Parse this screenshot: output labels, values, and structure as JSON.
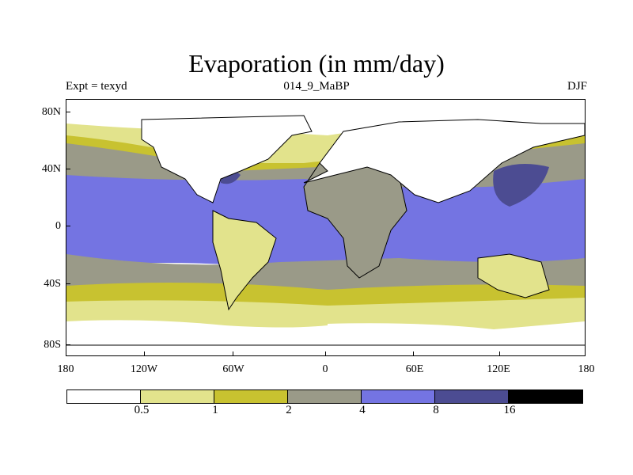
{
  "title": "Evaporation (in mm/day)",
  "subtitle_left": "Expt = texyd",
  "subtitle_center": "014_9_MaBP",
  "subtitle_right": "DJF",
  "yticks": [
    "80N",
    "40N",
    "0",
    "40S",
    "80S"
  ],
  "xticks": [
    "180",
    "120W",
    "60W",
    "0",
    "60E",
    "120E",
    "180"
  ],
  "colorbar": {
    "colors": [
      "#ffffff",
      "#e2e38c",
      "#c8c230",
      "#9a9a88",
      "#7474e2",
      "#4c4c92",
      "#000000"
    ],
    "labels": [
      "0.5",
      "1",
      "2",
      "4",
      "8",
      "16"
    ]
  }
}
